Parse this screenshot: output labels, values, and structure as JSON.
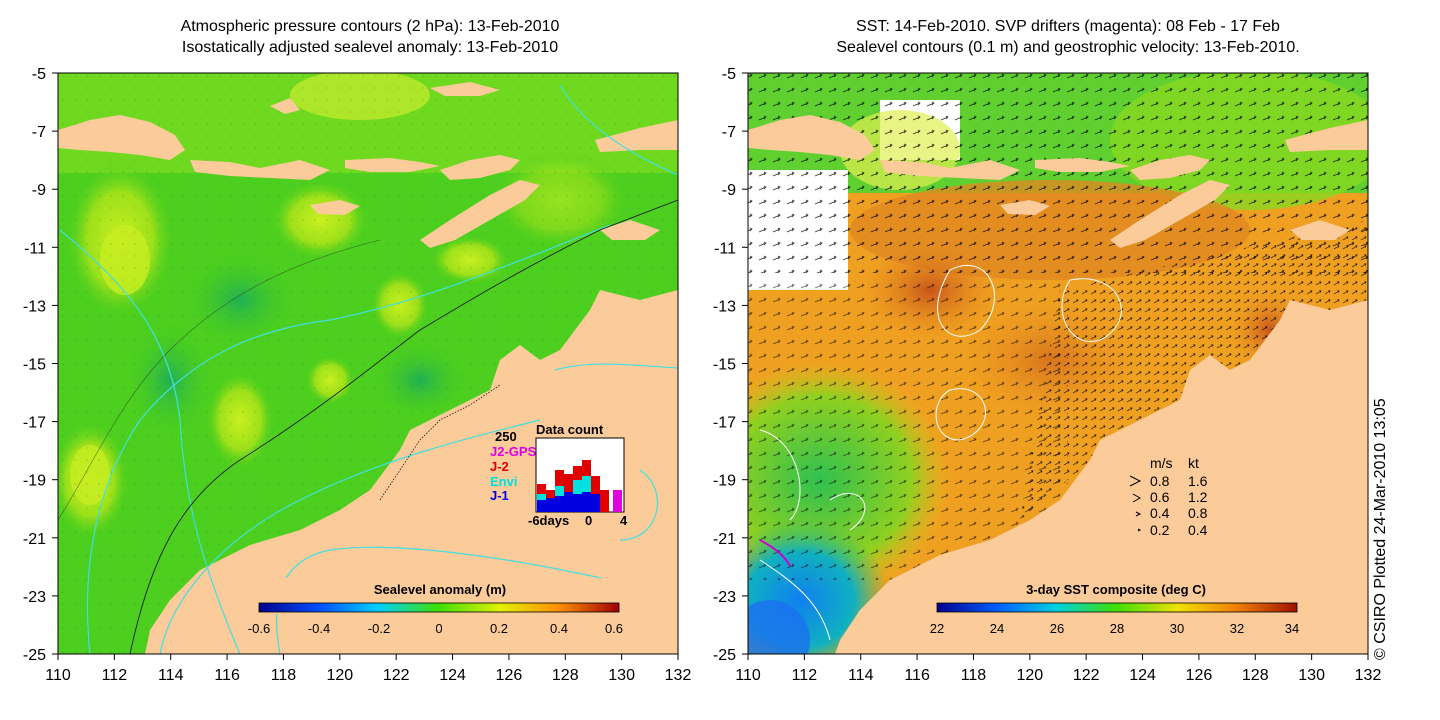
{
  "left_panel": {
    "title_line1": "Atmospheric pressure contours (2 hPa): 13-Feb-2010",
    "title_line2": "Isostatically adjusted sealevel anomaly: 13-Feb-2010",
    "colorbar_label": "Sealevel anomaly (m)",
    "colorbar_ticks": [
      "-0.6",
      "-0.4",
      "-0.2",
      "0",
      "0.2",
      "0.4",
      "0.6"
    ],
    "inset": {
      "title": "Data count",
      "ymax_label": "250",
      "legend": [
        {
          "label": "J2-GPS",
          "color": "#e000e0"
        },
        {
          "label": "J-2",
          "color": "#e00000"
        },
        {
          "label": "Envi",
          "color": "#00e0e0"
        },
        {
          "label": "J-1",
          "color": "#0000e0"
        }
      ],
      "x_ticks": [
        "-6days",
        "0",
        "4"
      ]
    }
  },
  "right_panel": {
    "title_line1": "SST: 14-Feb-2010. SVP drifters (magenta): 08 Feb - 17 Feb",
    "title_line2": "Sealevel contours (0.1 m) and geostrophic velocity: 13-Feb-2010.",
    "colorbar_label": "3-day SST composite (deg C)",
    "colorbar_ticks": [
      "22",
      "24",
      "26",
      "28",
      "30",
      "32",
      "34"
    ],
    "velocity_legend": {
      "header_ms": "m/s",
      "header_kt": "kt",
      "rows": [
        {
          "ms": "0.8",
          "kt": "1.6"
        },
        {
          "ms": "0.6",
          "kt": "1.2"
        },
        {
          "ms": "0.4",
          "kt": "0.8"
        },
        {
          "ms": "0.2",
          "kt": "0.4"
        }
      ]
    }
  },
  "axes": {
    "x_ticks": [
      "110",
      "112",
      "114",
      "116",
      "118",
      "120",
      "122",
      "124",
      "126",
      "128",
      "130",
      "132"
    ],
    "y_ticks": [
      "-5",
      "-7",
      "-9",
      "-11",
      "-13",
      "-15",
      "-17",
      "-19",
      "-21",
      "-23",
      "-25"
    ]
  },
  "credit": "© CSIRO Plotted 24-Mar-2010 13:05",
  "colors": {
    "land": "#fbcb9a",
    "ocean_anomaly_base": "#4ccf1e",
    "sst_base": "#f0a020",
    "contour_cyan": "#40e0e0",
    "drifter_magenta": "#d000d0"
  }
}
